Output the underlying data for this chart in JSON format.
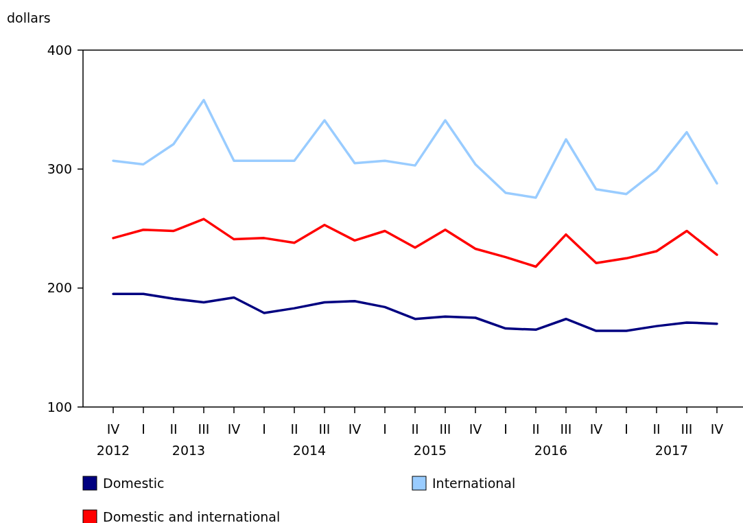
{
  "chart_data": {
    "type": "line",
    "ylabel": "dollars",
    "categories": [
      "IV",
      "I",
      "II",
      "III",
      "IV",
      "I",
      "II",
      "III",
      "IV",
      "I",
      "II",
      "III",
      "IV",
      "I",
      "II",
      "III",
      "IV",
      "I",
      "II",
      "III",
      "IV"
    ],
    "annotations": [
      "2012",
      "2013",
      "2014",
      "2015",
      "2016",
      "2017"
    ],
    "series": [
      {
        "name": "Domestic",
        "color": "#000080",
        "values": [
          195,
          195,
          191,
          188,
          192,
          179,
          183,
          188,
          189,
          184,
          174,
          176,
          175,
          166,
          165,
          174,
          164,
          164,
          168,
          171,
          170
        ]
      },
      {
        "name": "International",
        "color": "#99ccff",
        "values": [
          307,
          304,
          321,
          358,
          307,
          307,
          307,
          341,
          305,
          307,
          303,
          341,
          304,
          280,
          276,
          325,
          283,
          279,
          299,
          331,
          288
        ]
      },
      {
        "name": "Domestic and international",
        "color": "#ff0000",
        "values": [
          242,
          249,
          248,
          258,
          241,
          242,
          238,
          253,
          240,
          248,
          234,
          249,
          233,
          226,
          218,
          245,
          221,
          225,
          231,
          248,
          228
        ]
      }
    ],
    "ylim": [
      100,
      400
    ],
    "yticks": [
      100,
      200,
      300,
      400
    ],
    "grid": false,
    "legend": "bottom",
    "marker": "none",
    "line_style": "solid"
  }
}
